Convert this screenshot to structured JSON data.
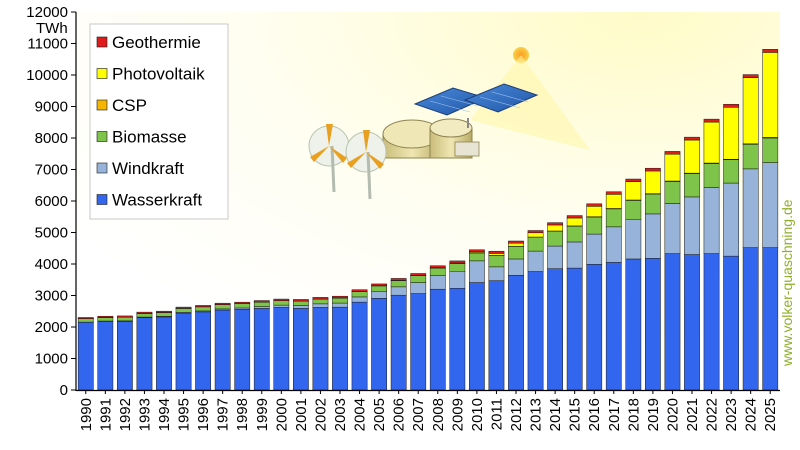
{
  "chart_data": {
    "type": "bar",
    "stacked": true,
    "ylabel": "TWh",
    "ylim": [
      0,
      12000
    ],
    "yticks": [
      0,
      1000,
      2000,
      3000,
      4000,
      5000,
      6000,
      7000,
      8000,
      9000,
      10000,
      11000,
      12000
    ],
    "grid": false,
    "legend_position": "top-left",
    "categories": [
      "1990",
      "1991",
      "1992",
      "1993",
      "1994",
      "1995",
      "1996",
      "1997",
      "1998",
      "1999",
      "2000",
      "2001",
      "2002",
      "2003",
      "2004",
      "2005",
      "2006",
      "2007",
      "2008",
      "2009",
      "2010",
      "2011",
      "2012",
      "2013",
      "2014",
      "2015",
      "2016",
      "2017",
      "2018",
      "2019",
      "2020",
      "2021",
      "2022",
      "2023",
      "2024",
      "2025"
    ],
    "series": [
      {
        "name": "Wasserkraft",
        "color": "#3366ee",
        "values": [
          2150,
          2180,
          2180,
          2300,
          2320,
          2440,
          2480,
          2540,
          2560,
          2590,
          2620,
          2590,
          2620,
          2630,
          2790,
          2910,
          3010,
          3060,
          3200,
          3230,
          3410,
          3470,
          3640,
          3760,
          3850,
          3870,
          3990,
          4050,
          4160,
          4180,
          4330,
          4300,
          4330,
          4250,
          4520,
          4520
        ]
      },
      {
        "name": "Windkraft",
        "color": "#97b3d9",
        "values": [
          5,
          10,
          15,
          15,
          20,
          25,
          30,
          35,
          45,
          60,
          75,
          90,
          115,
          130,
          165,
          210,
          265,
          350,
          440,
          540,
          690,
          440,
          520,
          650,
          720,
          830,
          960,
          1130,
          1260,
          1410,
          1590,
          1830,
          2100,
          2320,
          2500,
          2700
        ]
      },
      {
        "name": "Biomasse",
        "color": "#7fc44a",
        "values": [
          110,
          110,
          115,
          115,
          120,
          125,
          130,
          135,
          135,
          140,
          140,
          140,
          150,
          160,
          170,
          185,
          200,
          220,
          230,
          240,
          250,
          360,
          400,
          440,
          470,
          500,
          540,
          570,
          600,
          630,
          700,
          740,
          760,
          740,
          780,
          780
        ]
      },
      {
        "name": "CSP",
        "color": "#f5b400",
        "values": [
          1,
          1,
          1,
          1,
          1,
          1,
          1,
          1,
          1,
          1,
          1,
          1,
          1,
          1,
          1,
          1,
          1,
          1,
          1,
          2,
          2,
          3,
          5,
          6,
          8,
          10,
          11,
          12,
          12,
          13,
          14,
          15,
          15,
          15,
          16,
          17
        ]
      },
      {
        "name": "Photovoltaik",
        "color": "#ffff00",
        "values": [
          1,
          1,
          1,
          1,
          1,
          1,
          1,
          1,
          1,
          1,
          1,
          2,
          2,
          3,
          3,
          4,
          6,
          8,
          12,
          20,
          32,
          63,
          95,
          135,
          190,
          250,
          330,
          450,
          580,
          720,
          850,
          1050,
          1300,
          1650,
          2100,
          2700
        ]
      },
      {
        "name": "Geothermie",
        "color": "#e01b1b",
        "values": [
          35,
          40,
          40,
          40,
          40,
          40,
          42,
          44,
          46,
          48,
          50,
          52,
          52,
          54,
          56,
          58,
          60,
          60,
          62,
          66,
          68,
          70,
          70,
          72,
          75,
          78,
          80,
          82,
          85,
          88,
          90,
          92,
          94,
          95,
          97,
          98
        ]
      }
    ]
  },
  "watermark": "www.volker-quaschning.de",
  "colors": {
    "axis_bg_top": "#ffffff",
    "axis_bg_bottom": "#ffffcc",
    "sun": "#f7b52c"
  }
}
